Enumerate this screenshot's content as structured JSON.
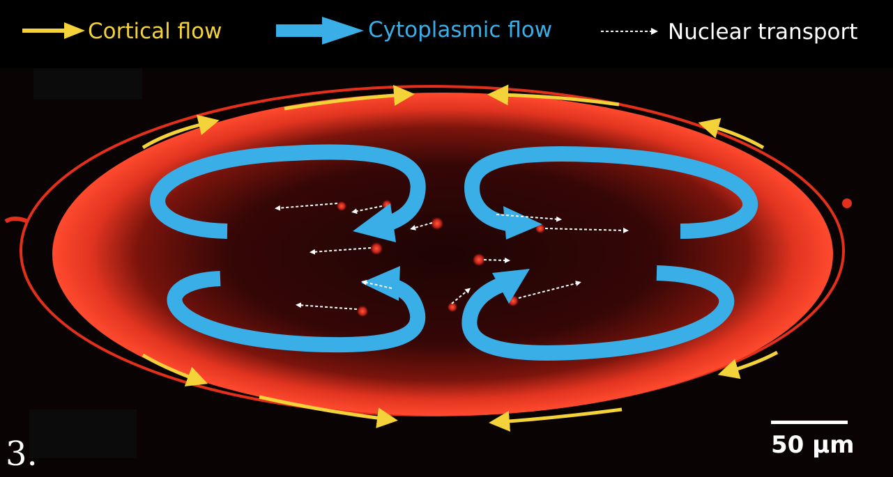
{
  "legend": {
    "cortical": {
      "label": "Cortical flow",
      "color": "#f4d33a"
    },
    "cytoplasmic": {
      "label": "Cytoplasmic flow",
      "color": "#3aaee6"
    },
    "nuclear": {
      "label": "Nuclear transport",
      "color": "#ffffff"
    }
  },
  "panel_label": "3.",
  "scale_bar": {
    "label": "50 µm"
  },
  "colors": {
    "background": "#000000",
    "embryo_cortex": "#e8321e",
    "embryo_interior": "#2a0605",
    "nucleus": "#ff3a25"
  },
  "icons": [
    "cortical-flow-arrow-icon",
    "cytoplasmic-flow-arrow-icon",
    "nuclear-transport-arrow-icon"
  ]
}
